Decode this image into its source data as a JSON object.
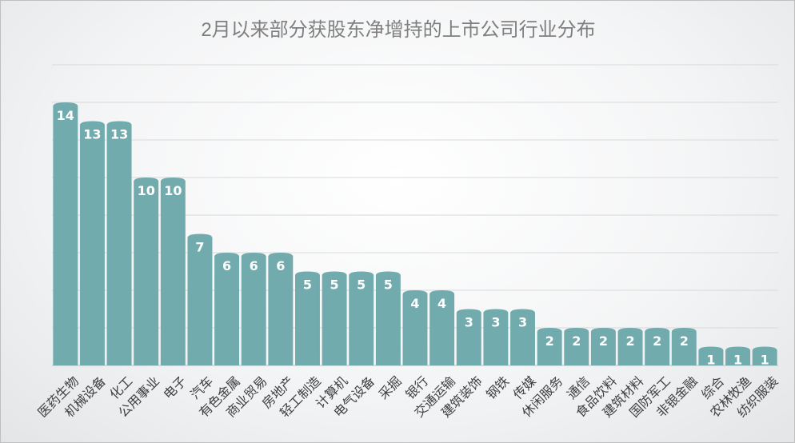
{
  "chart_data": {
    "type": "bar",
    "title": "2月以来部分获股东净增持的上市公司行业分布",
    "categories": [
      "医药生物",
      "机械设备",
      "化工",
      "公用事业",
      "电子",
      "汽车",
      "有色金属",
      "商业贸易",
      "房地产",
      "轻工制造",
      "计算机",
      "电气设备",
      "采掘",
      "银行",
      "交通运输",
      "建筑装饰",
      "钢铁",
      "传媒",
      "休闲服务",
      "通信",
      "食品饮料",
      "建筑材料",
      "国防军工",
      "非银金融",
      "综合",
      "农林牧渔",
      "纺织服装"
    ],
    "values": [
      14,
      13,
      13,
      10,
      10,
      7,
      6,
      6,
      6,
      5,
      5,
      5,
      5,
      4,
      4,
      3,
      3,
      3,
      2,
      2,
      2,
      2,
      2,
      2,
      1,
      1,
      1
    ],
    "ylim": [
      0,
      16
    ],
    "grid": true,
    "legend": "none",
    "bar_color": "#72abae",
    "xlabel": "",
    "ylabel": ""
  }
}
